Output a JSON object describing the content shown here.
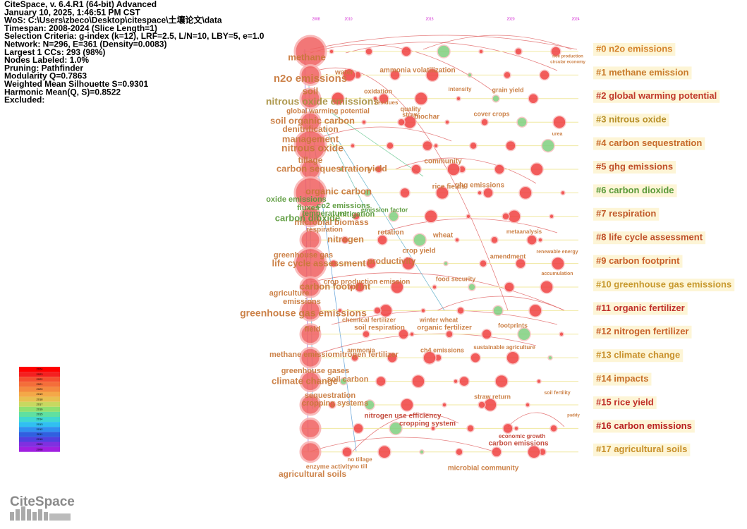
{
  "info": [
    "CiteSpace, v. 6.4.R1 (64-bit) Advanced",
    "January 10, 2025, 1:46:51 PM CST",
    "WoS: C:\\Users\\zbeco\\Desktop\\citespace\\土壤论文\\data",
    "Timespan: 2008-2024 (Slice Length=1)",
    "Selection Criteria: g-index (k=12), LRF=2.5, L/N=10, LBY=5, e=1.0",
    "Network: N=296, E=361 (Density=0.0083)",
    "Largest 1 CCs: 293 (98%)",
    "Nodes Labeled: 1.0%",
    "Pruning: Pathfinder",
    "Modularity Q=0.7863",
    "Weighted Mean Silhouette S=0.9301",
    "Harmonic Mean(Q, S)=0.8522",
    "Excluded:"
  ],
  "timeline_years": [
    2008,
    2010,
    2015,
    2020,
    2024
  ],
  "clusters": [
    "#0 n2o emissions",
    "#1 methane emission",
    "#2 global warming potential",
    "#3 nitrous oxide",
    "#4 carbon sequestration",
    "#5 ghg emissions",
    "#6 carbon dioxide",
    "#7 respiration",
    "#8 life cycle assessment",
    "#9 carbon footprint",
    "#10 greenhouse gas emissions",
    "#11 organic fertilizer",
    "#12 nitrogen fertilizer",
    "#13 climate change",
    "#14 impacts",
    "#15 rice yield",
    "#16 carbon emissions",
    "#17 agricultural soils"
  ],
  "nodes": [
    "methane",
    "n2o emissions",
    "water",
    "nitrous oxide emissions",
    "soil",
    "global warming potential",
    "soil organic carbon",
    "denitrification",
    "management",
    "nitrous oxide",
    "tillage",
    "carbon sequestration",
    "yield",
    "organic carbon",
    "oxide emissions",
    "fluxes",
    "co2 emissions",
    "temperature",
    "carbon dioxide",
    "mitigation",
    "microbial biomass",
    "respiration",
    "nitrogen",
    "life cycle assessment",
    "greenhouse gas",
    "carbon footprint",
    "agriculture",
    "emissions",
    "greenhouse gas emissions",
    "field",
    "methane emission",
    "nitrogen fertilizer",
    "greenhouse gases",
    "climate change",
    "soil carbon",
    "sequestration",
    "cropping systems",
    "agricultural soils",
    "enzyme activity",
    "no tillage",
    "no till",
    "nitrogen use efficiency",
    "cropping system",
    "microbial community",
    "carbon emissions",
    "economic growth",
    "ammonia volatilization",
    "oxidation",
    "biochar",
    "quality",
    "straw",
    "residues",
    "cover crops",
    "grain yield",
    "intensity",
    "community",
    "rice fields",
    "ghg emissions",
    "emission factor",
    "rotation",
    "wheat",
    "crop yield",
    "productivity",
    "amendment",
    "crop production emission",
    "food security",
    "winter wheat",
    "chemical fertilizer",
    "soil respiration",
    "organic fertilizer",
    "ammonia",
    "ch4 emissions",
    "straw return",
    "footprints",
    "sustainable agriculture",
    "urea",
    "metaanalysis",
    "renewable energy",
    "accumulation",
    "rice production",
    "circular economy",
    "soil fertility",
    "paddy"
  ],
  "legend_years": [
    2024,
    2023,
    2022,
    2021,
    2020,
    2019,
    2018,
    2017,
    2016,
    2015,
    2014,
    2013,
    2012,
    2011,
    2010,
    2009,
    2008
  ],
  "logo": "CiteSpace"
}
